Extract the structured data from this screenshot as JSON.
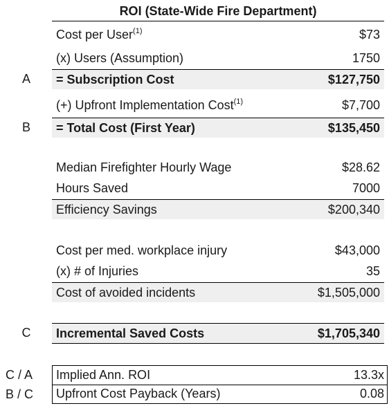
{
  "title": "ROI (State-Wide Fire Department)",
  "rows": {
    "cost_per_user": {
      "label": "Cost per User",
      "note": "(1)",
      "value": "$73"
    },
    "users": {
      "label": "(x) Users (Assumption)",
      "value": "1750"
    },
    "subscription": {
      "letter": "A",
      "label": "= Subscription Cost",
      "value": "$127,750"
    },
    "upfront": {
      "label": "(+) Upfront Implementation Cost",
      "note": "(1)",
      "value": "$7,700"
    },
    "total": {
      "letter": "B",
      "label": "= Total Cost (First Year)",
      "value": "$135,450"
    },
    "wage": {
      "label": "Median Firefighter Hourly Wage",
      "value": "$28.62"
    },
    "hours": {
      "label": "Hours Saved",
      "value": "7000"
    },
    "efficiency": {
      "label": "Efficiency Savings",
      "value": "$200,340"
    },
    "injury_cost": {
      "label": "Cost per med. workplace injury",
      "value": "$43,000"
    },
    "injuries": {
      "label": "(x) # of Injuries",
      "value": "35"
    },
    "avoided": {
      "label": "Cost of avoided incidents",
      "value": "$1,505,000"
    },
    "incremental": {
      "letter": "C",
      "label": "Incremental Saved Costs",
      "value": "$1,705,340"
    }
  },
  "summary": {
    "roi": {
      "letter": "C / A",
      "label": "Implied Ann. ROI",
      "value": "13.3x"
    },
    "payback": {
      "letter": "B / C",
      "label": "Upfront Cost Payback (Years)",
      "value": "0.08"
    }
  }
}
